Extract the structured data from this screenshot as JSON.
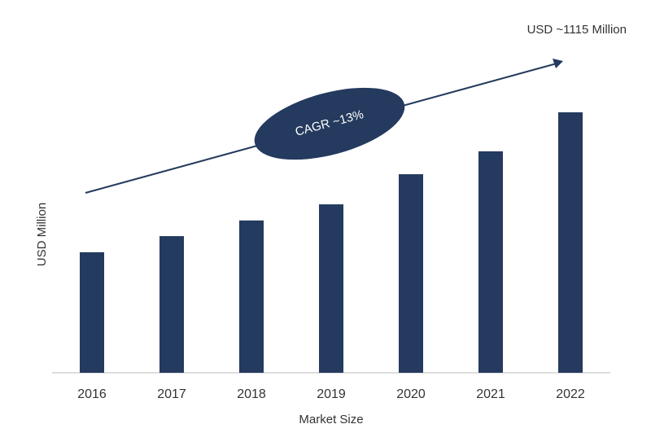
{
  "chart_data": {
    "type": "bar",
    "y_label": "USD Million",
    "x_label": "Market Size",
    "categories": [
      "2016",
      "2017",
      "2018",
      "2019",
      "2020",
      "2021",
      "2022"
    ],
    "values": [
      516,
      585,
      652,
      721,
      850,
      948,
      1115
    ],
    "color": "#243a5e",
    "annotations": [
      "USD ~1115 Million",
      "CAGR ~13%"
    ]
  }
}
